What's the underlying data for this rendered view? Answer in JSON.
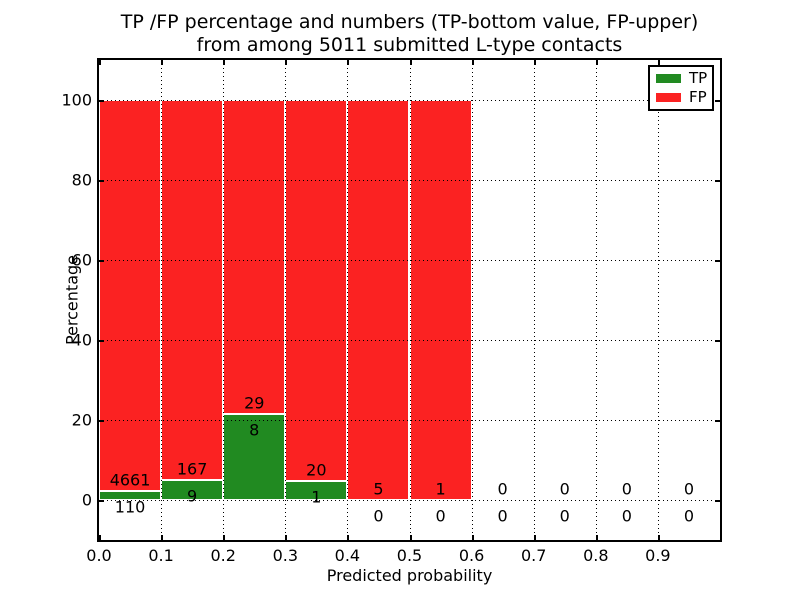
{
  "figure": {
    "title_line1": "TP /FP percentage and numbers (TP-bottom value, FP-upper)",
    "title_line2": "from among 5011 submitted L-type contacts"
  },
  "chart_data": {
    "type": "bar",
    "title": "TP /FP percentage and numbers (TP-bottom value, FP-upper) from among 5011 submitted L-type contacts",
    "xlabel": "Predicted probability",
    "ylabel": "Percentage",
    "xlim": [
      0.0,
      1.0
    ],
    "ylim": [
      -10,
      110
    ],
    "xticks": [
      "0.0",
      "0.1",
      "0.2",
      "0.3",
      "0.4",
      "0.5",
      "0.6",
      "0.7",
      "0.8",
      "0.9"
    ],
    "yticks": [
      0,
      20,
      40,
      60,
      80,
      100
    ],
    "grid": true,
    "stacked": true,
    "total_contacts": 5011,
    "legend": {
      "position": "upper right",
      "entries": [
        {
          "label": "TP",
          "color": "#218a21"
        },
        {
          "label": "FP",
          "color": "#fb2222"
        }
      ]
    },
    "bins": [
      {
        "range": [
          0.0,
          0.1
        ],
        "tp": 110,
        "fp": 4661,
        "tp_pct": 2.31,
        "fp_pct": 97.69
      },
      {
        "range": [
          0.1,
          0.2
        ],
        "tp": 9,
        "fp": 167,
        "tp_pct": 5.11,
        "fp_pct": 94.89
      },
      {
        "range": [
          0.2,
          0.3
        ],
        "tp": 8,
        "fp": 29,
        "tp_pct": 21.62,
        "fp_pct": 78.38
      },
      {
        "range": [
          0.3,
          0.4
        ],
        "tp": 1,
        "fp": 20,
        "tp_pct": 4.76,
        "fp_pct": 95.24
      },
      {
        "range": [
          0.4,
          0.5
        ],
        "tp": 0,
        "fp": 5,
        "tp_pct": 0,
        "fp_pct": 100
      },
      {
        "range": [
          0.5,
          0.6
        ],
        "tp": 0,
        "fp": 1,
        "tp_pct": 0,
        "fp_pct": 100
      },
      {
        "range": [
          0.6,
          0.7
        ],
        "tp": 0,
        "fp": 0,
        "tp_pct": 0,
        "fp_pct": 0
      },
      {
        "range": [
          0.7,
          0.8
        ],
        "tp": 0,
        "fp": 0,
        "tp_pct": 0,
        "fp_pct": 0
      },
      {
        "range": [
          0.8,
          0.9
        ],
        "tp": 0,
        "fp": 0,
        "tp_pct": 0,
        "fp_pct": 0
      },
      {
        "range": [
          0.9,
          1.0
        ],
        "tp": 0,
        "fp": 0,
        "tp_pct": 0,
        "fp_pct": 0
      }
    ]
  },
  "colors": {
    "tp": "#218a21",
    "fp": "#fb2222",
    "axis": "#000000",
    "background": "#ffffff"
  }
}
